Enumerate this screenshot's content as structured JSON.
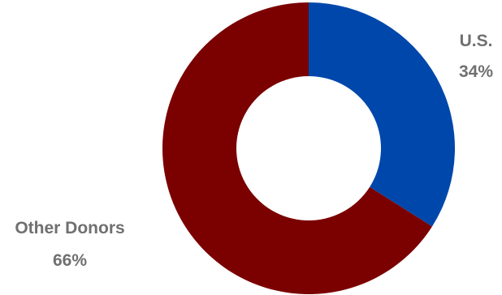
{
  "chart_data": {
    "type": "pie",
    "variant": "donut",
    "title": "",
    "slices": [
      {
        "label": "U.S.",
        "value": 34,
        "display": "34%",
        "color": "#0047AB"
      },
      {
        "label": "Other Donors",
        "value": 66,
        "display": "66%",
        "color": "#7B0000"
      }
    ],
    "legend": "none",
    "start_angle": "12 o'clock",
    "direction": "clockwise",
    "label_color": "#707070"
  }
}
